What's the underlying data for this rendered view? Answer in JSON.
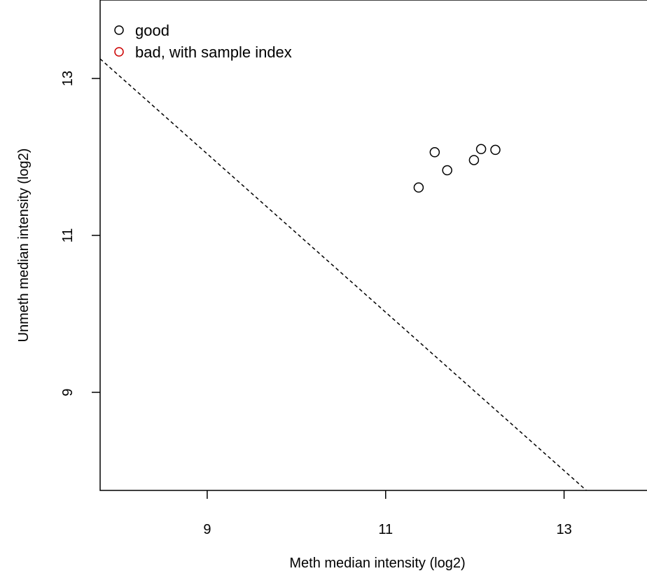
{
  "chart_data": {
    "type": "scatter",
    "xlabel": "Meth median intensity (log2)",
    "ylabel": "Unmeth median intensity (log2)",
    "xlim": [
      7.8,
      14.0
    ],
    "ylim": [
      7.75,
      14.0
    ],
    "x_ticks": [
      9,
      11,
      13
    ],
    "y_ticks": [
      9,
      11,
      13
    ],
    "grid": false,
    "legend_position": "top-left",
    "legend": [
      {
        "label": "good",
        "color": "#000000",
        "marker": "open-circle"
      },
      {
        "label": "bad, with sample index",
        "color": "#cc0000",
        "marker": "open-circle"
      }
    ],
    "series": [
      {
        "name": "good",
        "color": "#000000",
        "points": [
          {
            "x": 11.37,
            "y": 11.61
          },
          {
            "x": 11.55,
            "y": 12.06
          },
          {
            "x": 11.69,
            "y": 11.83
          },
          {
            "x": 11.99,
            "y": 11.96
          },
          {
            "x": 12.07,
            "y": 12.1
          },
          {
            "x": 12.23,
            "y": 12.09
          }
        ]
      },
      {
        "name": "bad, with sample index",
        "color": "#cc0000",
        "points": []
      }
    ],
    "reference_line": {
      "style": "dashed",
      "points": [
        {
          "x": 7.8,
          "y": 13.25
        },
        {
          "x": 13.25,
          "y": 7.75
        }
      ]
    }
  }
}
